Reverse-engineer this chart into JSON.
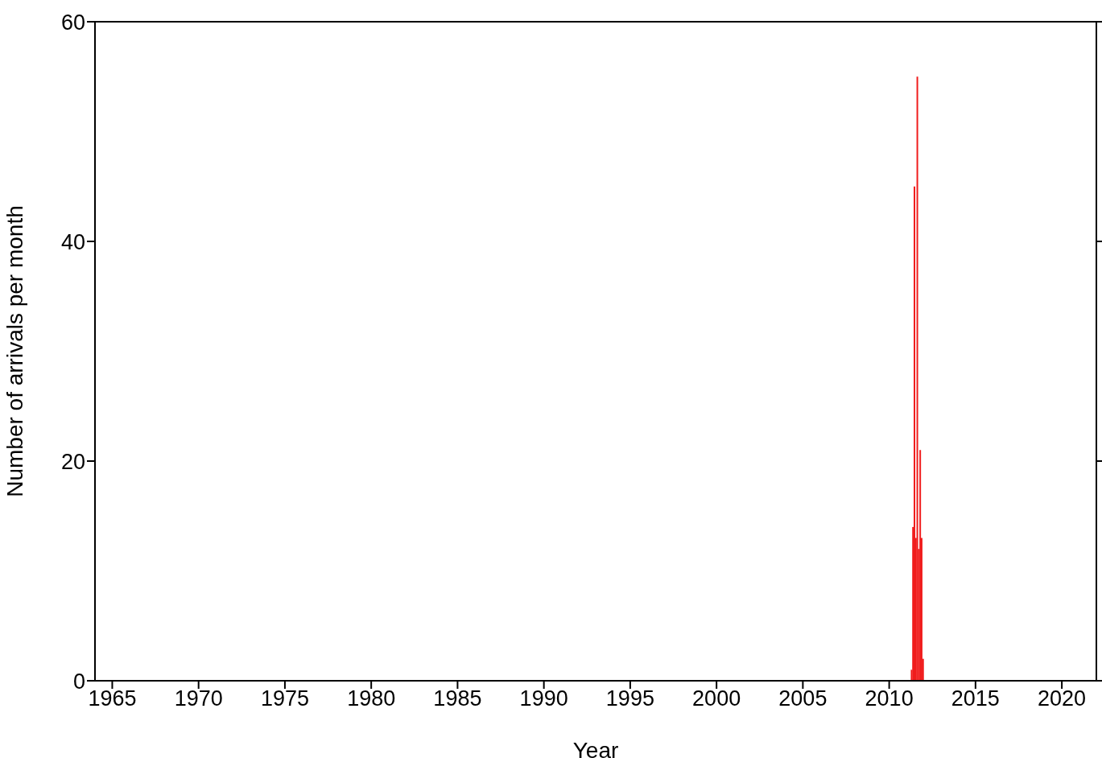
{
  "chart_data": {
    "type": "histogram",
    "xlabel": "Year",
    "ylabel": "Number of arrivals per month",
    "bins": [
      2011.25,
      2011.333,
      2011.417,
      2011.5,
      2011.583,
      2011.667,
      2011.75,
      2011.833,
      2011.917,
      2012.0
    ],
    "values": [
      1,
      14,
      45,
      13,
      55,
      12,
      21,
      13,
      2
    ],
    "color": "#f01c1c",
    "xlim": [
      1964,
      2022
    ],
    "xticks": [
      1965,
      1970,
      1975,
      1980,
      1985,
      1990,
      1995,
      2000,
      2005,
      2010,
      2015,
      2020
    ],
    "ylim": [
      0,
      60
    ],
    "yticks": [
      0,
      20,
      40,
      60
    ],
    "grid": false
  }
}
